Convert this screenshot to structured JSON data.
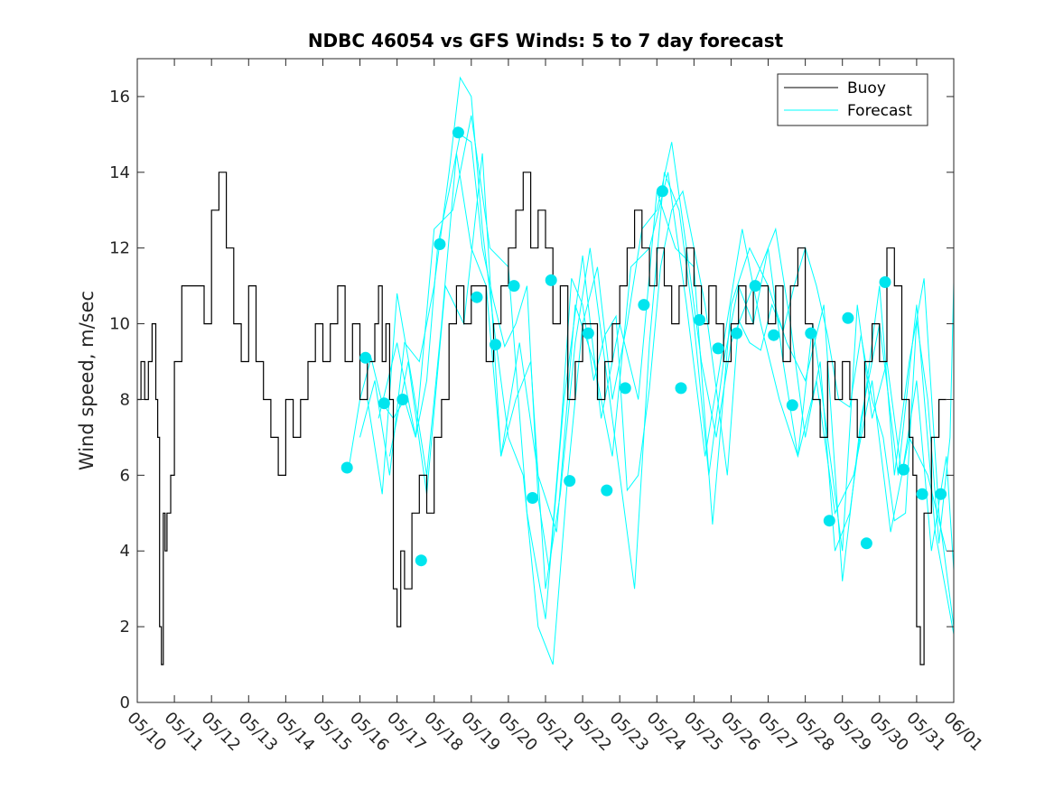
{
  "chart_data": {
    "type": "line",
    "title": "NDBC 46054 vs GFS Winds: 5 to 7 day forecast",
    "xlabel": "",
    "ylabel": "Wind speed, m/sec",
    "xlim": [
      "05/10",
      "06/01"
    ],
    "ylim": [
      0,
      17
    ],
    "grid": false,
    "legend_position": "top-right",
    "x_tick_labels": [
      "05/10",
      "05/11",
      "05/12",
      "05/13",
      "05/14",
      "05/15",
      "05/16",
      "05/17",
      "05/18",
      "05/19",
      "05/20",
      "05/21",
      "05/22",
      "05/23",
      "05/24",
      "05/25",
      "05/26",
      "05/27",
      "05/28",
      "05/29",
      "05/30",
      "05/31",
      "06/01"
    ],
    "y_ticks": [
      0,
      2,
      4,
      6,
      8,
      10,
      12,
      14,
      16
    ],
    "colors": {
      "buoy": "#000000",
      "forecast": "#00ffff",
      "markers": "#00e5ee",
      "axes": "#262626"
    },
    "series": [
      {
        "name": "Buoy",
        "style": "line",
        "x": [
          10.0,
          10.1,
          10.2,
          10.3,
          10.4,
          10.5,
          10.55,
          10.6,
          10.65,
          10.7,
          10.75,
          10.8,
          10.9,
          11.0,
          11.2,
          11.4,
          11.6,
          11.8,
          12.0,
          12.2,
          12.4,
          12.6,
          12.8,
          13.0,
          13.2,
          13.4,
          13.6,
          13.8,
          14.0,
          14.2,
          14.4,
          14.6,
          14.8,
          15.0,
          15.2,
          15.4,
          15.6,
          15.8,
          16.0,
          16.2,
          16.4,
          16.5,
          16.6,
          16.7,
          16.8,
          16.9,
          17.0,
          17.1,
          17.2,
          17.4,
          17.6,
          17.8,
          18.0,
          18.2,
          18.4,
          18.6,
          18.8,
          19.0,
          19.2,
          19.4,
          19.6,
          19.8,
          20.0,
          20.2,
          20.4,
          20.6,
          20.8,
          21.0,
          21.2,
          21.4,
          21.6,
          21.8,
          22.0,
          22.2,
          22.4,
          22.6,
          22.8,
          23.0,
          23.2,
          23.4,
          23.6,
          23.8,
          24.0,
          24.2,
          24.4,
          24.6,
          24.8,
          25.0,
          25.2,
          25.4,
          25.6,
          25.8,
          26.0,
          26.2,
          26.4,
          26.6,
          26.8,
          27.0,
          27.2,
          27.4,
          27.6,
          27.8,
          28.0,
          28.2,
          28.4,
          28.6,
          28.8,
          29.0,
          29.2,
          29.4,
          29.6,
          29.8,
          30.0,
          30.2,
          30.4,
          30.6,
          30.8,
          30.9,
          31.0,
          31.1,
          31.2,
          31.4,
          31.6,
          31.8
        ],
        "values": [
          8,
          9,
          8,
          9,
          10,
          8,
          7,
          2,
          1,
          5,
          4,
          5,
          6,
          9,
          11,
          11,
          11,
          10,
          13,
          14,
          12,
          10,
          9,
          11,
          9,
          8,
          7,
          6,
          8,
          7,
          8,
          9,
          10,
          9,
          10,
          11,
          9,
          10,
          8,
          9,
          10,
          11,
          9,
          10,
          8,
          3,
          2,
          4,
          3,
          5,
          6,
          5,
          7,
          8,
          10,
          11,
          10,
          11,
          11,
          9,
          10,
          11,
          12,
          13,
          14,
          12,
          13,
          12,
          10,
          11,
          8,
          9,
          10,
          10,
          8,
          9,
          10,
          11,
          12,
          13,
          12,
          11,
          12,
          11,
          10,
          11,
          12,
          11,
          10,
          11,
          10,
          9,
          10,
          11,
          10,
          11,
          11,
          10,
          11,
          9,
          11,
          12,
          10,
          8,
          7,
          9,
          8,
          9,
          8,
          7,
          9,
          10,
          9,
          12,
          11,
          8,
          7,
          6,
          2,
          1,
          5,
          7,
          8,
          8
        ]
      },
      {
        "name": "Forecast",
        "style": "line",
        "runs": [
          {
            "x": [
              15.7,
              16.0,
              16.3,
              16.6,
              16.9,
              17.2,
              17.5,
              17.8,
              18.1,
              18.4,
              18.7,
              19.0,
              19.3,
              19.6,
              19.9,
              20.2,
              20.5,
              20.8,
              21.1,
              21.4,
              21.7,
              22.0,
              22.3,
              22.6,
              22.9,
              23.2,
              23.5,
              23.8,
              24.1,
              24.4,
              24.7,
              25.0,
              25.3,
              25.6,
              25.9,
              26.2,
              26.5,
              26.8,
              27.1,
              27.4,
              27.7,
              28.0,
              28.3,
              28.6,
              28.9,
              29.2,
              29.5,
              29.8,
              30.1,
              30.4,
              30.7,
              31.0,
              31.3,
              31.6,
              31.9,
              32.0
            ],
            "values": [
              6.2,
              8.0,
              9.1,
              7.9,
              7.5,
              8.0,
              7.0,
              8.5,
              12.1,
              13.5,
              15.0,
              14.8,
              12.0,
              10.6,
              9.4,
              10.0,
              11.0,
              5.4,
              3.5,
              7.0,
              11.2,
              10.5,
              8.5,
              9.7,
              10.2,
              5.6,
              6.0,
              8.3,
              11.5,
              13.0,
              13.5,
              12.0,
              10.5,
              8.3,
              6.0,
              10.1,
              9.5,
              9.3,
              10.5,
              9.8,
              11.0,
              12.0,
              11.0,
              9.7,
              8.0,
              7.8,
              9.7,
              8.0,
              7.0,
              4.8,
              5.0,
              10.1,
              8.0,
              4.2,
              7.0,
              11.1
            ]
          },
          {
            "x": [
              16.0,
              16.4,
              16.8,
              17.2,
              17.6,
              18.0,
              18.4,
              18.7,
              19.0,
              19.3,
              19.6,
              20.0,
              20.4,
              20.8,
              21.2,
              21.6,
              22.0,
              22.4,
              22.8,
              23.2,
              23.6,
              24.0,
              24.4,
              24.8,
              25.2,
              25.6,
              26.0,
              26.4,
              26.8,
              27.2,
              27.6,
              28.0,
              28.4,
              28.8,
              29.2,
              29.6,
              30.0,
              30.4,
              30.8,
              31.2,
              31.6,
              32.0
            ],
            "values": [
              7.0,
              8.5,
              6.0,
              9.5,
              9.0,
              11.0,
              14.0,
              16.5,
              16.0,
              12.5,
              10.0,
              7.0,
              6.0,
              2.0,
              1.0,
              6.0,
              10.0,
              11.5,
              8.0,
              10.0,
              12.5,
              13.0,
              14.8,
              12.0,
              9.0,
              7.0,
              9.5,
              10.5,
              11.5,
              12.5,
              10.0,
              7.0,
              9.0,
              4.0,
              5.0,
              8.0,
              11.0,
              6.0,
              9.0,
              11.2,
              5.0,
              2.0
            ]
          },
          {
            "x": [
              16.2,
              16.6,
              17.0,
              17.4,
              17.8,
              18.2,
              18.6,
              19.0,
              19.4,
              19.8,
              20.2,
              20.6,
              21.0,
              21.4,
              21.8,
              22.2,
              22.6,
              23.0,
              23.4,
              23.8,
              24.2,
              24.6,
              25.0,
              25.4,
              25.8,
              26.2,
              26.6,
              27.0,
              27.4,
              27.8,
              28.2,
              28.6,
              29.0,
              29.4,
              29.8,
              30.2,
              30.6,
              31.0,
              31.4,
              31.8,
              32.0
            ],
            "values": [
              8.0,
              5.5,
              10.8,
              8.5,
              6.0,
              10.0,
              14.5,
              12.0,
              11.0,
              6.5,
              8.0,
              9.0,
              3.0,
              5.5,
              9.5,
              12.0,
              9.0,
              6.0,
              3.0,
              9.5,
              14.0,
              13.0,
              10.0,
              6.0,
              9.0,
              11.0,
              10.0,
              12.0,
              9.0,
              6.5,
              10.0,
              7.0,
              4.0,
              10.5,
              7.5,
              9.0,
              6.0,
              8.5,
              4.0,
              6.5,
              3.5
            ]
          },
          {
            "x": [
              16.5,
              17.0,
              17.5,
              18.0,
              18.5,
              19.0,
              19.5,
              20.0,
              20.5,
              21.0,
              21.5,
              22.0,
              22.5,
              23.0,
              23.5,
              24.0,
              24.5,
              25.0,
              25.5,
              26.0,
              26.5,
              27.0,
              27.5,
              28.0,
              28.5,
              29.0,
              29.5,
              30.0,
              30.5,
              31.0,
              31.5,
              32.0
            ],
            "values": [
              7.5,
              9.5,
              7.0,
              12.5,
              13.0,
              15.5,
              12.0,
              11.5,
              5.0,
              2.2,
              8.0,
              11.8,
              7.5,
              10.0,
              8.0,
              13.5,
              12.0,
              11.5,
              4.7,
              10.5,
              12.0,
              11.0,
              9.5,
              8.5,
              10.5,
              3.2,
              7.5,
              10.0,
              6.0,
              10.5,
              4.5,
              1.8
            ]
          },
          {
            "x": [
              16.8,
              17.3,
              17.8,
              18.3,
              18.8,
              19.3,
              19.8,
              20.3,
              20.8,
              21.3,
              21.8,
              22.3,
              22.8,
              23.3,
              23.8,
              24.3,
              24.8,
              25.3,
              25.8,
              26.3,
              26.8,
              27.3,
              27.8,
              28.3,
              28.8,
              29.3,
              29.8,
              30.3,
              30.8,
              31.3,
              31.8
            ],
            "values": [
              6.5,
              9.0,
              5.5,
              11.0,
              10.0,
              14.5,
              6.5,
              9.5,
              6.0,
              4.5,
              10.5,
              9.0,
              6.5,
              11.5,
              12.0,
              14.0,
              10.5,
              6.5,
              9.5,
              12.5,
              10.0,
              8.0,
              6.5,
              8.5,
              5.0,
              6.0,
              8.5,
              4.5,
              7.0,
              6.0,
              4.0
            ]
          }
        ]
      },
      {
        "name": "",
        "style": "markers",
        "x": [
          15.65,
          16.15,
          16.65,
          17.15,
          17.65,
          18.15,
          18.65,
          19.15,
          19.65,
          20.15,
          20.65,
          21.15,
          21.65,
          22.15,
          22.65,
          23.15,
          23.65,
          24.15,
          24.65,
          25.15,
          25.65,
          26.15,
          26.65,
          27.15,
          27.65,
          28.15,
          28.65,
          29.15,
          29.65,
          30.15,
          30.65,
          31.15,
          31.65
        ],
        "values": [
          6.2,
          9.1,
          7.9,
          8.0,
          3.75,
          12.1,
          15.05,
          10.7,
          9.45,
          11.0,
          5.4,
          11.15,
          5.85,
          9.75,
          5.6,
          8.3,
          10.5,
          13.5,
          8.3,
          10.1,
          9.35,
          9.75,
          11.0,
          9.7,
          7.85,
          9.75,
          4.8,
          10.15,
          4.2,
          11.1,
          6.15,
          5.5,
          5.5
        ]
      }
    ]
  }
}
